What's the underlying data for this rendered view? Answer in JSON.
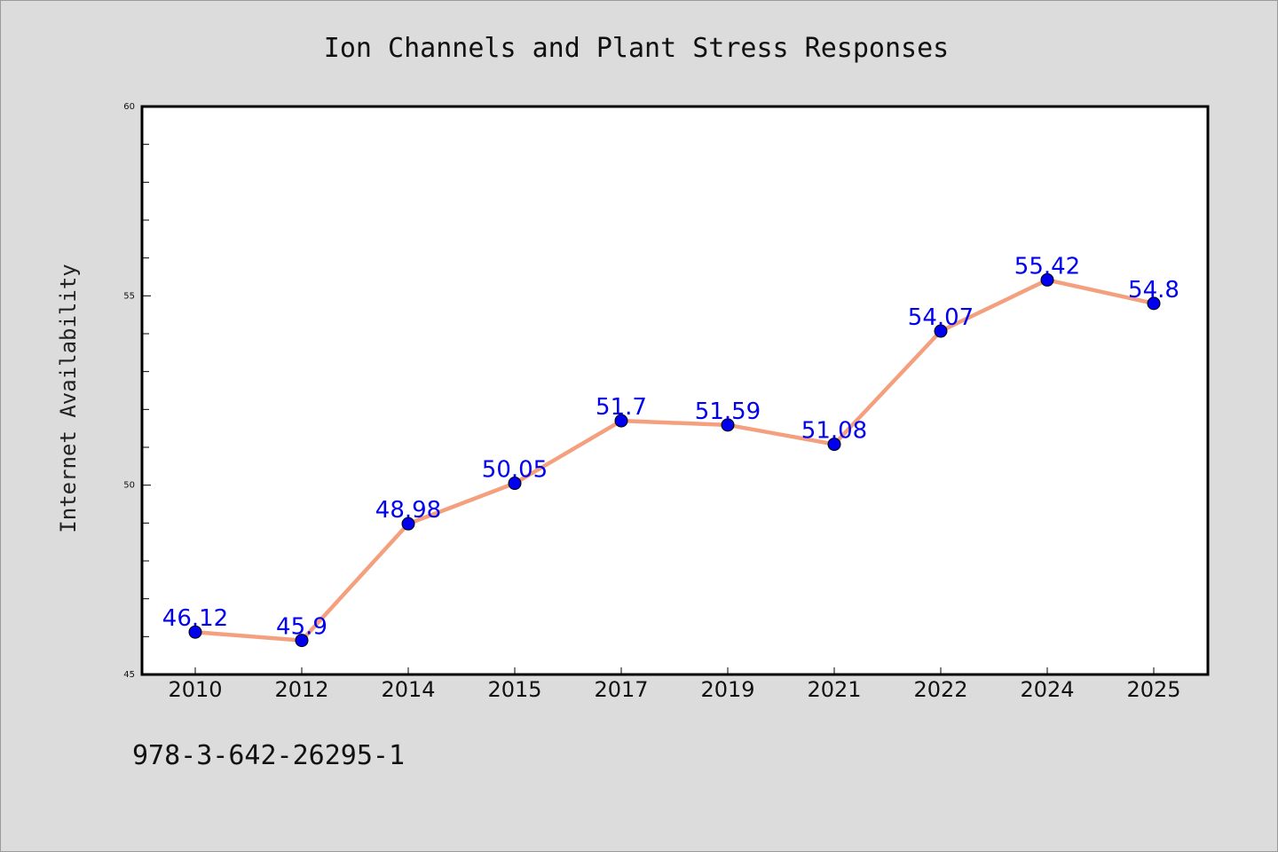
{
  "chart_data": {
    "type": "line",
    "title": "Ion Channels and Plant Stress Responses",
    "xlabel": "",
    "ylabel": "Internet Availability",
    "categories": [
      "2010",
      "2012",
      "2014",
      "2015",
      "2017",
      "2019",
      "2021",
      "2022",
      "2024",
      "2025"
    ],
    "series": [
      {
        "values": [
          46.12,
          45.9,
          48.98,
          50.05,
          51.7,
          51.59,
          51.08,
          54.07,
          55.42,
          54.8
        ],
        "data_labels": [
          "46.12",
          "45.9",
          "48.98",
          "50.05",
          "51.7",
          "51.59",
          "51.08",
          "54.07",
          "55.42",
          "54.8"
        ],
        "line_color": "#f4a07f",
        "marker_color": "#0000ee",
        "label_color": "#0000ee"
      }
    ],
    "ylim": [
      45,
      60
    ],
    "yticks": [
      "45",
      "50",
      "55",
      "60"
    ],
    "y_minor_step": 1,
    "grid": false,
    "legend": "none"
  },
  "footer": {
    "caption": "978-3-642-26295-1"
  },
  "colors": {
    "background": "#dcdcdc",
    "plot_background": "#ffffff",
    "axis": "#000000"
  }
}
